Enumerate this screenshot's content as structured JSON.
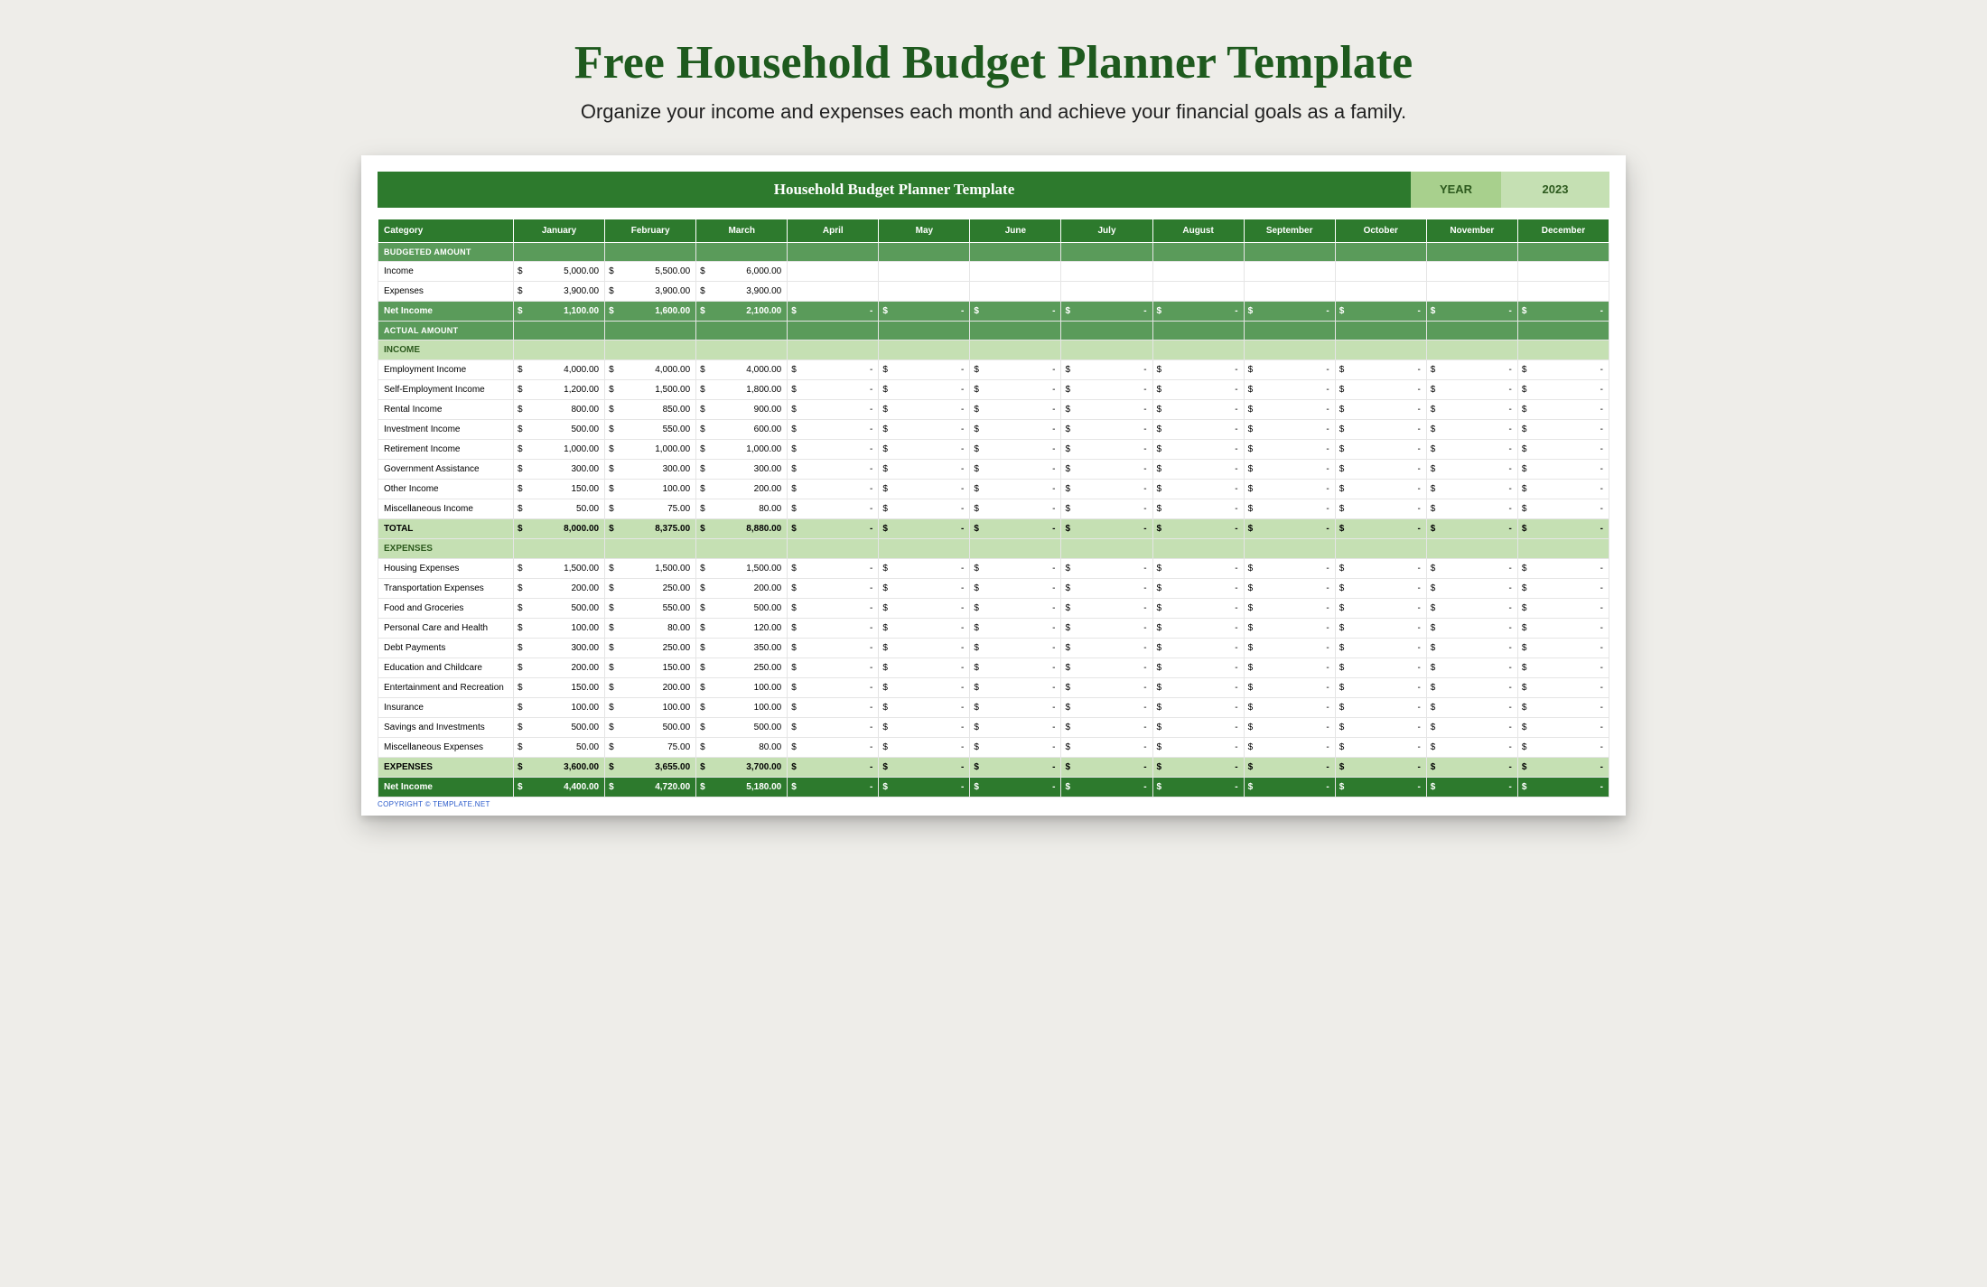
{
  "page": {
    "title": "Free Household Budget Planner Template",
    "subtitle": "Organize your income and expenses each month and achieve your financial goals as a family."
  },
  "banner": {
    "title": "Household Budget Planner Template",
    "year_label": "YEAR",
    "year_value": "2023"
  },
  "months": [
    "January",
    "February",
    "March",
    "April",
    "May",
    "June",
    "July",
    "August",
    "September",
    "October",
    "November",
    "December"
  ],
  "columns_header": "Category",
  "sections": {
    "budgeted": {
      "label": "BUDGETED AMOUNT",
      "rows": [
        {
          "label": "Income",
          "vals": [
            "5,000.00",
            "5,500.00",
            "6,000.00",
            "",
            "",
            "",
            "",
            "",
            "",
            "",
            "",
            ""
          ]
        },
        {
          "label": "Expenses",
          "vals": [
            "3,900.00",
            "3,900.00",
            "3,900.00",
            "",
            "",
            "",
            "",
            "",
            "",
            "",
            "",
            ""
          ]
        }
      ],
      "net": {
        "label": "Net Income",
        "vals": [
          "1,100.00",
          "1,600.00",
          "2,100.00",
          "-",
          "-",
          "-",
          "-",
          "-",
          "-",
          "-",
          "-",
          "-"
        ]
      }
    },
    "actual": {
      "label": "ACTUAL AMOUNT"
    },
    "income": {
      "label": "INCOME",
      "rows": [
        {
          "label": "Employment Income",
          "vals": [
            "4,000.00",
            "4,000.00",
            "4,000.00",
            "-",
            "-",
            "-",
            "-",
            "-",
            "-",
            "-",
            "-",
            "-"
          ]
        },
        {
          "label": "Self-Employment Income",
          "vals": [
            "1,200.00",
            "1,500.00",
            "1,800.00",
            "-",
            "-",
            "-",
            "-",
            "-",
            "-",
            "-",
            "-",
            "-"
          ]
        },
        {
          "label": "Rental Income",
          "vals": [
            "800.00",
            "850.00",
            "900.00",
            "-",
            "-",
            "-",
            "-",
            "-",
            "-",
            "-",
            "-",
            "-"
          ]
        },
        {
          "label": "Investment Income",
          "vals": [
            "500.00",
            "550.00",
            "600.00",
            "-",
            "-",
            "-",
            "-",
            "-",
            "-",
            "-",
            "-",
            "-"
          ]
        },
        {
          "label": "Retirement Income",
          "vals": [
            "1,000.00",
            "1,000.00",
            "1,000.00",
            "-",
            "-",
            "-",
            "-",
            "-",
            "-",
            "-",
            "-",
            "-"
          ]
        },
        {
          "label": "Government Assistance",
          "vals": [
            "300.00",
            "300.00",
            "300.00",
            "-",
            "-",
            "-",
            "-",
            "-",
            "-",
            "-",
            "-",
            "-"
          ]
        },
        {
          "label": "Other Income",
          "vals": [
            "150.00",
            "100.00",
            "200.00",
            "-",
            "-",
            "-",
            "-",
            "-",
            "-",
            "-",
            "-",
            "-"
          ]
        },
        {
          "label": "Miscellaneous Income",
          "vals": [
            "50.00",
            "75.00",
            "80.00",
            "-",
            "-",
            "-",
            "-",
            "-",
            "-",
            "-",
            "-",
            "-"
          ]
        }
      ],
      "total": {
        "label": "TOTAL",
        "vals": [
          "8,000.00",
          "8,375.00",
          "8,880.00",
          "-",
          "-",
          "-",
          "-",
          "-",
          "-",
          "-",
          "-",
          "-"
        ]
      }
    },
    "expenses": {
      "label": "EXPENSES",
      "rows": [
        {
          "label": "Housing Expenses",
          "vals": [
            "1,500.00",
            "1,500.00",
            "1,500.00",
            "-",
            "-",
            "-",
            "-",
            "-",
            "-",
            "-",
            "-",
            "-"
          ]
        },
        {
          "label": "Transportation Expenses",
          "vals": [
            "200.00",
            "250.00",
            "200.00",
            "-",
            "-",
            "-",
            "-",
            "-",
            "-",
            "-",
            "-",
            "-"
          ]
        },
        {
          "label": "Food and Groceries",
          "vals": [
            "500.00",
            "550.00",
            "500.00",
            "-",
            "-",
            "-",
            "-",
            "-",
            "-",
            "-",
            "-",
            "-"
          ]
        },
        {
          "label": "Personal Care and Health",
          "vals": [
            "100.00",
            "80.00",
            "120.00",
            "-",
            "-",
            "-",
            "-",
            "-",
            "-",
            "-",
            "-",
            "-"
          ]
        },
        {
          "label": "Debt Payments",
          "vals": [
            "300.00",
            "250.00",
            "350.00",
            "-",
            "-",
            "-",
            "-",
            "-",
            "-",
            "-",
            "-",
            "-"
          ]
        },
        {
          "label": "Education and Childcare",
          "vals": [
            "200.00",
            "150.00",
            "250.00",
            "-",
            "-",
            "-",
            "-",
            "-",
            "-",
            "-",
            "-",
            "-"
          ]
        },
        {
          "label": "Entertainment and Recreation",
          "vals": [
            "150.00",
            "200.00",
            "100.00",
            "-",
            "-",
            "-",
            "-",
            "-",
            "-",
            "-",
            "-",
            "-"
          ]
        },
        {
          "label": "Insurance",
          "vals": [
            "100.00",
            "100.00",
            "100.00",
            "-",
            "-",
            "-",
            "-",
            "-",
            "-",
            "-",
            "-",
            "-"
          ]
        },
        {
          "label": "Savings and Investments",
          "vals": [
            "500.00",
            "500.00",
            "500.00",
            "-",
            "-",
            "-",
            "-",
            "-",
            "-",
            "-",
            "-",
            "-"
          ]
        },
        {
          "label": "Miscellaneous Expenses",
          "vals": [
            "50.00",
            "75.00",
            "80.00",
            "-",
            "-",
            "-",
            "-",
            "-",
            "-",
            "-",
            "-",
            "-"
          ]
        }
      ],
      "total": {
        "label": "EXPENSES",
        "vals": [
          "3,600.00",
          "3,655.00",
          "3,700.00",
          "-",
          "-",
          "-",
          "-",
          "-",
          "-",
          "-",
          "-",
          "-"
        ]
      }
    },
    "final_net": {
      "label": "Net Income",
      "vals": [
        "4,400.00",
        "4,720.00",
        "5,180.00",
        "-",
        "-",
        "-",
        "-",
        "-",
        "-",
        "-",
        "-",
        "-"
      ]
    }
  },
  "copyright": "COPYRIGHT © TEMPLATE.NET",
  "colors": {
    "page_bg": "#eeede9",
    "title_color": "#1e5a1e",
    "banner_dark": "#2d7a2d",
    "banner_mid": "#5a9b5a",
    "banner_light": "#a8d08d",
    "banner_lighter": "#c5e0b3",
    "link_blue": "#2a5aca"
  }
}
